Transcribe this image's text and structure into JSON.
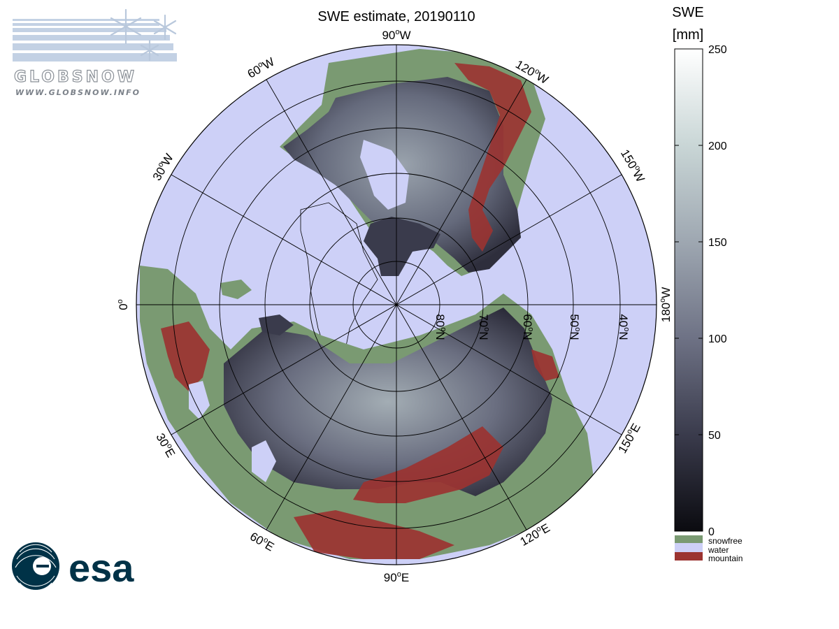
{
  "title": "SWE estimate, 20190110",
  "colorbar": {
    "label_line1": "SWE",
    "label_line2": "[mm]",
    "ticks": [
      "250",
      "200",
      "150",
      "100",
      "50",
      "0"
    ],
    "tick_values": [
      250,
      200,
      150,
      100,
      50,
      0
    ],
    "min": 0,
    "max": 250,
    "colors": [
      "#0b0b10",
      "#3a3b4c",
      "#6e7285",
      "#9ea7b1",
      "#c9d6d6",
      "#ffffff"
    ],
    "categories": [
      {
        "label": "snowfree",
        "color": "#7a9a72"
      },
      {
        "label": "water",
        "color": "#cdd0f7"
      },
      {
        "label": "mountain",
        "color": "#9b3331"
      }
    ]
  },
  "map": {
    "projection": "north-polar-stereographic",
    "ocean_color": "#cdd0f7",
    "snowfree_color": "#7a9a72",
    "mountain_color": "#9b3331",
    "snow_dark_color": "#2e2e3c",
    "snow_light_color": "#9fa9b0",
    "grid_color": "#000000",
    "longitude_labels": [
      {
        "deg": "90",
        "hemi": "W"
      },
      {
        "deg": "120",
        "hemi": "W"
      },
      {
        "deg": "150",
        "hemi": "W"
      },
      {
        "deg": "180",
        "hemi": "W"
      },
      {
        "deg": "150",
        "hemi": "E"
      },
      {
        "deg": "120",
        "hemi": "E"
      },
      {
        "deg": "90",
        "hemi": "E"
      },
      {
        "deg": "60",
        "hemi": "E"
      },
      {
        "deg": "30",
        "hemi": "E"
      },
      {
        "deg": "0",
        "hemi": ""
      },
      {
        "deg": "30",
        "hemi": "W"
      },
      {
        "deg": "60",
        "hemi": "W"
      }
    ],
    "latitude_labels": [
      {
        "deg": "80",
        "hemi": "N"
      },
      {
        "deg": "70",
        "hemi": "N"
      },
      {
        "deg": "60",
        "hemi": "N"
      },
      {
        "deg": "50",
        "hemi": "N"
      },
      {
        "deg": "40",
        "hemi": "N"
      }
    ]
  },
  "logos": {
    "globsnow_name": "GLOBSNOW",
    "globsnow_url": "WWW.GLOBSNOW.INFO",
    "esa_name": "esa",
    "globsnow_color": "#8a9097",
    "esa_color": "#003247"
  }
}
